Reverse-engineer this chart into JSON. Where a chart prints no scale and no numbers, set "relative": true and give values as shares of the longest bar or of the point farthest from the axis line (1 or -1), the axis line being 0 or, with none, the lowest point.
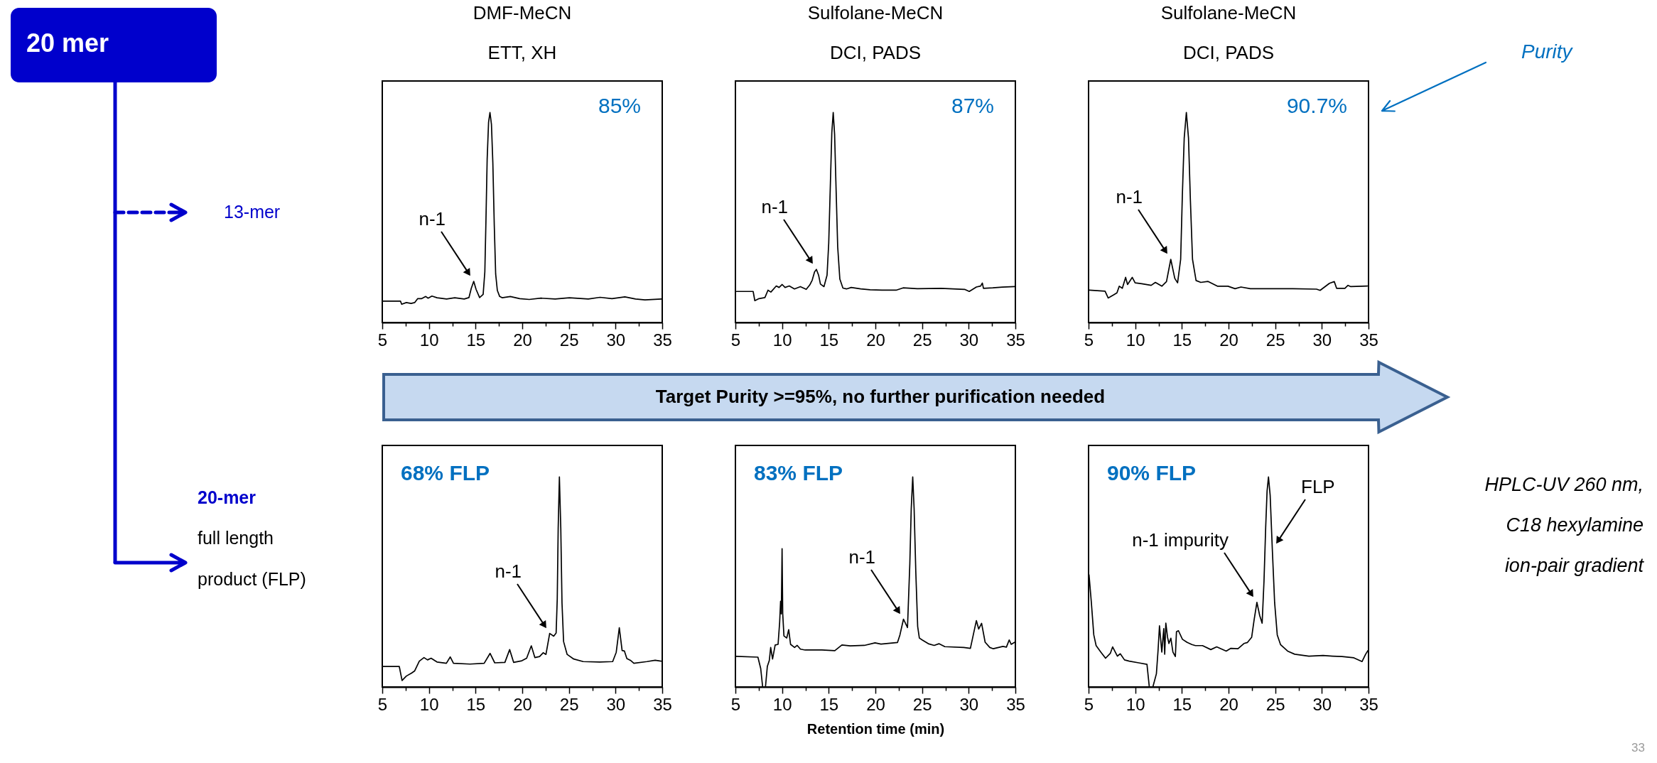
{
  "chart_data": [
    {
      "type": "other",
      "title": "20 mer",
      "annotations": [
        "13-mer",
        "20-mer",
        "full length",
        "product (FLP)"
      ]
    },
    {
      "type": "line",
      "title": "DMF-MeCN",
      "subtitle": "ETT, XH",
      "relative": true,
      "xlim": [
        5,
        35
      ],
      "xticks": [
        5,
        {
          "value": 7.5,
          "label": null
        },
        10,
        {
          "value": 12.5,
          "label": null
        },
        15,
        {
          "value": 17.5,
          "label": null
        },
        20,
        {
          "value": 22.5,
          "label": null
        },
        25,
        {
          "value": 27.5,
          "label": null
        },
        30,
        {
          "value": 32.5,
          "label": null
        },
        35
      ],
      "x": [
        5.05,
        6.95,
        7.08,
        7.58,
        8.09,
        8.47,
        8.8,
        9.23,
        9.66,
        9.91,
        10.32,
        10.87,
        11.89,
        12.77,
        13.78,
        14.29,
        14.54,
        14.8,
        15.05,
        15.43,
        15.81,
        15.99,
        16.11,
        16.24,
        16.39,
        16.54,
        16.7,
        16.85,
        17.0,
        17.15,
        17.33,
        17.58,
        17.84,
        18.72,
        19.73,
        20.75,
        22.01,
        23.53,
        25.05,
        27.08,
        28.34,
        29.61,
        31.0,
        32.14,
        33.15,
        34.92
      ],
      "series": [
        {
          "color": "#000000",
          "values": [
            0.102,
            0.102,
            0.087,
            0.095,
            0.091,
            0.095,
            0.114,
            0.114,
            0.124,
            0.116,
            0.126,
            0.118,
            0.112,
            0.118,
            0.112,
            0.119,
            0.163,
            0.196,
            0.158,
            0.119,
            0.134,
            0.241,
            0.485,
            0.778,
            0.953,
            1.0,
            0.943,
            0.758,
            0.465,
            0.231,
            0.153,
            0.124,
            0.118,
            0.124,
            0.114,
            0.11,
            0.116,
            0.112,
            0.118,
            0.112,
            0.12,
            0.114,
            0.122,
            0.112,
            0.108,
            0.112
          ]
        }
      ],
      "annotations": [
        "85%",
        "n-1"
      ]
    },
    {
      "type": "line",
      "title": "Sulfolane-MeCN",
      "subtitle": "DCI, PADS",
      "relative": true,
      "xlim": [
        5,
        35
      ],
      "xticks": [
        5,
        {
          "value": 7.5,
          "label": null
        },
        10,
        {
          "value": 12.5,
          "label": null
        },
        15,
        {
          "value": 17.5,
          "label": null
        },
        20,
        {
          "value": 22.5,
          "label": null
        },
        25,
        {
          "value": 27.5,
          "label": null
        },
        30,
        {
          "value": 32.5,
          "label": null
        },
        35
      ],
      "x": [
        5.13,
        6.9,
        7.08,
        7.53,
        8.16,
        8.49,
        8.8,
        9.38,
        9.68,
        10.01,
        10.32,
        10.77,
        11.33,
        11.96,
        12.59,
        12.97,
        13.23,
        13.48,
        13.68,
        13.91,
        14.11,
        14.49,
        14.82,
        15.0,
        15.18,
        15.33,
        15.48,
        15.63,
        15.78,
        15.96,
        16.19,
        16.52,
        16.9,
        17.41,
        18.42,
        19.43,
        20.7,
        22.22,
        22.97,
        24.49,
        27.03,
        29.56,
        30.06,
        30.82,
        31.28,
        31.46,
        31.58,
        32.59,
        33.61,
        34.92
      ],
      "series": [
        {
          "color": "#000000",
          "values": [
            0.148,
            0.148,
            0.104,
            0.114,
            0.119,
            0.154,
            0.145,
            0.174,
            0.167,
            0.181,
            0.167,
            0.174,
            0.16,
            0.171,
            0.158,
            0.179,
            0.202,
            0.241,
            0.253,
            0.226,
            0.183,
            0.171,
            0.226,
            0.379,
            0.666,
            0.904,
            1.0,
            0.895,
            0.647,
            0.36,
            0.207,
            0.164,
            0.16,
            0.167,
            0.16,
            0.156,
            0.154,
            0.154,
            0.165,
            0.161,
            0.163,
            0.158,
            0.148,
            0.169,
            0.174,
            0.188,
            0.163,
            0.165,
            0.169,
            0.171
          ]
        }
      ],
      "annotations": [
        "87%",
        "n-1"
      ]
    },
    {
      "type": "line",
      "title": "Sulfolane-MeCN",
      "subtitle": "DCI, PADS",
      "relative": true,
      "xlim": [
        5,
        35
      ],
      "xticks": [
        5,
        {
          "value": 7.5,
          "label": null
        },
        10,
        {
          "value": 12.5,
          "label": null
        },
        15,
        {
          "value": 17.5,
          "label": null
        },
        20,
        {
          "value": 22.5,
          "label": null
        },
        25,
        {
          "value": 27.5,
          "label": null
        },
        30,
        {
          "value": 32.5,
          "label": null
        },
        35
      ],
      "x": [
        5.08,
        6.77,
        7.1,
        7.66,
        8.04,
        8.29,
        8.62,
        8.97,
        9.18,
        9.43,
        9.68,
        9.99,
        10.7,
        11.71,
        12.16,
        12.85,
        13.35,
        13.81,
        14.24,
        14.54,
        14.87,
        15.05,
        15.25,
        15.48,
        15.71,
        15.91,
        16.14,
        16.52,
        17.03,
        17.78,
        18.8,
        19.94,
        20.7,
        21.33,
        22.34,
        24.37,
        26.9,
        29.43,
        29.81,
        30.82,
        31.33,
        31.58,
        32.47,
        32.8,
        33.1,
        34.87
      ],
      "series": [
        {
          "color": "#000000",
          "values": [
            0.154,
            0.149,
            0.117,
            0.131,
            0.141,
            0.173,
            0.163,
            0.215,
            0.181,
            0.198,
            0.215,
            0.189,
            0.185,
            0.177,
            0.191,
            0.173,
            0.195,
            0.301,
            0.21,
            0.189,
            0.301,
            0.605,
            0.878,
            1.0,
            0.878,
            0.585,
            0.301,
            0.2,
            0.191,
            0.196,
            0.173,
            0.173,
            0.161,
            0.169,
            0.161,
            0.161,
            0.161,
            0.159,
            0.153,
            0.187,
            0.195,
            0.163,
            0.163,
            0.177,
            0.171,
            0.174
          ]
        }
      ],
      "annotations": [
        "90.7%",
        "n-1"
      ]
    },
    {
      "type": "other",
      "annotations": [
        "Purity"
      ]
    },
    {
      "type": "other",
      "annotations": [
        "Target Purity >=95%, no further purification needed"
      ]
    },
    {
      "type": "line",
      "relative": true,
      "xlim": [
        5,
        35
      ],
      "xticks": [
        5,
        {
          "value": 7.5,
          "label": null
        },
        10,
        {
          "value": 12.5,
          "label": null
        },
        15,
        {
          "value": 17.5,
          "label": null
        },
        20,
        {
          "value": 22.5,
          "label": null
        },
        25,
        {
          "value": 27.5,
          "label": null
        },
        30,
        {
          "value": 32.5,
          "label": null
        },
        35
      ],
      "x": [
        5.1,
        6.82,
        7.12,
        7.58,
        8.13,
        8.46,
        8.97,
        9.47,
        9.85,
        10.23,
        10.86,
        11.87,
        12.28,
        12.63,
        14.4,
        15.92,
        16.55,
        17.05,
        18.14,
        18.65,
        19.08,
        19.96,
        20.47,
        20.97,
        21.35,
        21.86,
        22.24,
        22.54,
        22.94,
        23.37,
        23.63,
        23.75,
        23.85,
        23.98,
        24.13,
        24.26,
        24.43,
        24.81,
        25.52,
        26.53,
        28.3,
        29.69,
        30.07,
        30.4,
        30.7,
        30.95,
        31.21,
        31.59,
        31.96,
        33.36,
        34.24,
        34.87
      ],
      "series": [
        {
          "color": "#000000",
          "values": [
            0.098,
            0.098,
            0.031,
            0.052,
            0.066,
            0.076,
            0.123,
            0.14,
            0.129,
            0.137,
            0.119,
            0.113,
            0.143,
            0.113,
            0.109,
            0.113,
            0.16,
            0.115,
            0.117,
            0.178,
            0.117,
            0.125,
            0.137,
            0.196,
            0.14,
            0.145,
            0.163,
            0.155,
            0.255,
            0.242,
            0.257,
            0.419,
            0.754,
            1.0,
            0.754,
            0.399,
            0.216,
            0.155,
            0.133,
            0.121,
            0.119,
            0.121,
            0.165,
            0.282,
            0.174,
            0.171,
            0.135,
            0.127,
            0.113,
            0.121,
            0.127,
            0.123
          ]
        }
      ],
      "annotations": [
        "68% FLP",
        "n-1"
      ]
    },
    {
      "type": "line",
      "xlabel": "Retention time (min)",
      "relative": true,
      "xlim": [
        5,
        35
      ],
      "xticks": [
        5,
        {
          "value": 7.5,
          "label": null
        },
        10,
        {
          "value": 12.5,
          "label": null
        },
        15,
        {
          "value": 17.5,
          "label": null
        },
        20,
        {
          "value": 22.5,
          "label": null
        },
        25,
        {
          "value": 27.5,
          "label": null
        },
        30,
        {
          "value": 32.5,
          "label": null
        },
        35
      ],
      "x": [
        5.08,
        7.41,
        7.71,
        7.92,
        8.22,
        8.42,
        8.63,
        8.78,
        8.98,
        9.26,
        9.57,
        9.74,
        9.84,
        9.92,
        10.0,
        10.07,
        10.2,
        10.5,
        10.71,
        10.91,
        11.34,
        11.62,
        11.97,
        12.48,
        14.26,
        15.65,
        16.41,
        17.3,
        18.82,
        19.96,
        20.6,
        22.37,
        22.63,
        23.01,
        23.44,
        23.69,
        23.84,
        24.0,
        24.15,
        24.33,
        24.53,
        24.71,
        25.04,
        25.67,
        26.3,
        26.81,
        27.44,
        29.47,
        30.18,
        30.49,
        30.82,
        31.07,
        31.38,
        31.76,
        32.26,
        32.64,
        33.66,
        34.04,
        34.34,
        34.55,
        34.93
      ],
      "series": [
        {
          "color": "#000000",
          "values": [
            0.146,
            0.142,
            0.088,
            0.0,
            0.0,
            0.098,
            0.126,
            0.188,
            0.133,
            0.2,
            0.203,
            0.308,
            0.408,
            0.348,
            0.658,
            0.348,
            0.243,
            0.233,
            0.273,
            0.203,
            0.188,
            0.198,
            0.18,
            0.176,
            0.176,
            0.173,
            0.2,
            0.196,
            0.198,
            0.21,
            0.204,
            0.212,
            0.248,
            0.323,
            0.283,
            0.588,
            0.848,
            1.0,
            0.848,
            0.548,
            0.288,
            0.233,
            0.223,
            0.206,
            0.198,
            0.206,
            0.192,
            0.188,
            0.184,
            0.248,
            0.316,
            0.276,
            0.303,
            0.213,
            0.188,
            0.182,
            0.193,
            0.19,
            0.224,
            0.203,
            0.213
          ]
        }
      ],
      "annotations": [
        "83% FLP",
        "n-1"
      ]
    },
    {
      "type": "line",
      "relative": true,
      "xlim": [
        5,
        35
      ],
      "xticks": [
        5,
        {
          "value": 7.5,
          "label": null
        },
        10,
        {
          "value": 12.5,
          "label": null
        },
        15,
        {
          "value": 17.5,
          "label": null
        },
        20,
        {
          "value": 22.5,
          "label": null
        },
        25,
        {
          "value": 27.5,
          "label": null
        },
        30,
        {
          "value": 32.5,
          "label": null
        },
        35
      ],
      "x": [
        5.05,
        5.3,
        5.56,
        5.81,
        6.32,
        6.82,
        7.33,
        7.58,
        8.09,
        8.4,
        8.85,
        9.36,
        10.37,
        11.26,
        11.51,
        11.89,
        12.27,
        12.45,
        12.6,
        12.85,
        13.06,
        13.16,
        13.28,
        13.46,
        13.61,
        13.82,
        14.04,
        14.3,
        14.42,
        14.63,
        15.06,
        15.57,
        16.07,
        16.45,
        17.21,
        18.1,
        18.73,
        19.75,
        20.25,
        21.01,
        21.65,
        22.03,
        22.48,
        22.74,
        23.04,
        23.34,
        23.6,
        23.8,
        23.98,
        24.13,
        24.28,
        24.46,
        24.69,
        24.94,
        25.22,
        25.57,
        26.33,
        27.09,
        28.61,
        30.13,
        31.15,
        32.16,
        33.43,
        34.31,
        34.69,
        34.95
      ],
      "series": [
        {
          "color": "#000000",
          "values": [
            0.534,
            0.401,
            0.248,
            0.197,
            0.166,
            0.137,
            0.16,
            0.191,
            0.147,
            0.158,
            0.129,
            0.123,
            0.115,
            0.108,
            0.0,
            0.0,
            0.063,
            0.176,
            0.291,
            0.166,
            0.278,
            0.156,
            0.304,
            0.237,
            0.207,
            0.232,
            0.166,
            0.145,
            0.263,
            0.268,
            0.227,
            0.212,
            0.202,
            0.197,
            0.197,
            0.178,
            0.191,
            0.171,
            0.184,
            0.182,
            0.207,
            0.212,
            0.237,
            0.319,
            0.403,
            0.34,
            0.304,
            0.504,
            0.759,
            0.933,
            1.0,
            0.913,
            0.657,
            0.401,
            0.248,
            0.202,
            0.171,
            0.156,
            0.147,
            0.15,
            0.147,
            0.145,
            0.139,
            0.121,
            0.156,
            0.174
          ]
        }
      ],
      "annotations": [
        "90% FLP",
        "n-1 impurity",
        "FLP"
      ]
    },
    {
      "type": "other",
      "annotations": [
        "HPLC-UV 260 nm,",
        "C18 hexylamine",
        "ion-pair gradient",
        "33"
      ]
    }
  ]
}
